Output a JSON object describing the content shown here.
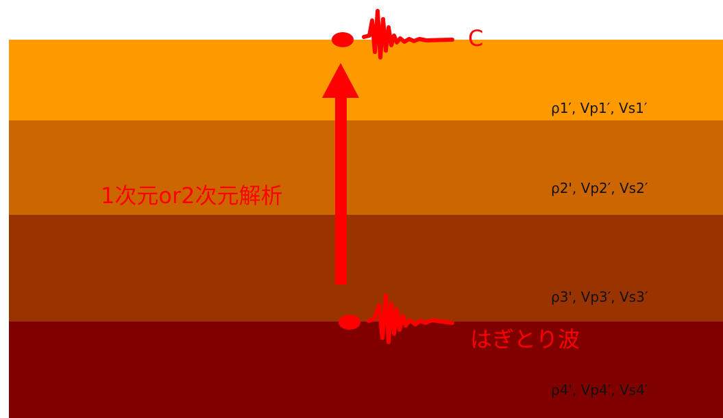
{
  "colors": {
    "layer_1": "#FF9900",
    "layer_2": "#CC6600",
    "layer_3": "#993300",
    "layer_4": "#800000",
    "accent_red": "#FF0000"
  },
  "layers": [
    {
      "properties": "ρ1′, Vp1′, Vs1′"
    },
    {
      "properties": "ρ2', Vp2′, Vs2′"
    },
    {
      "properties": "ρ3', Vp3′, Vs3′"
    },
    {
      "properties": "ρ4', Vp4′, Vs4′"
    }
  ],
  "labels": {
    "analysis": "1次元or2次元解析",
    "outcrop_wave": "はぎとり波",
    "surface_point": "C"
  },
  "icons": {
    "top_waveform": "seismic-waveform-icon",
    "bottom_waveform": "seismic-waveform-icon",
    "arrow": "up-arrow-icon"
  }
}
